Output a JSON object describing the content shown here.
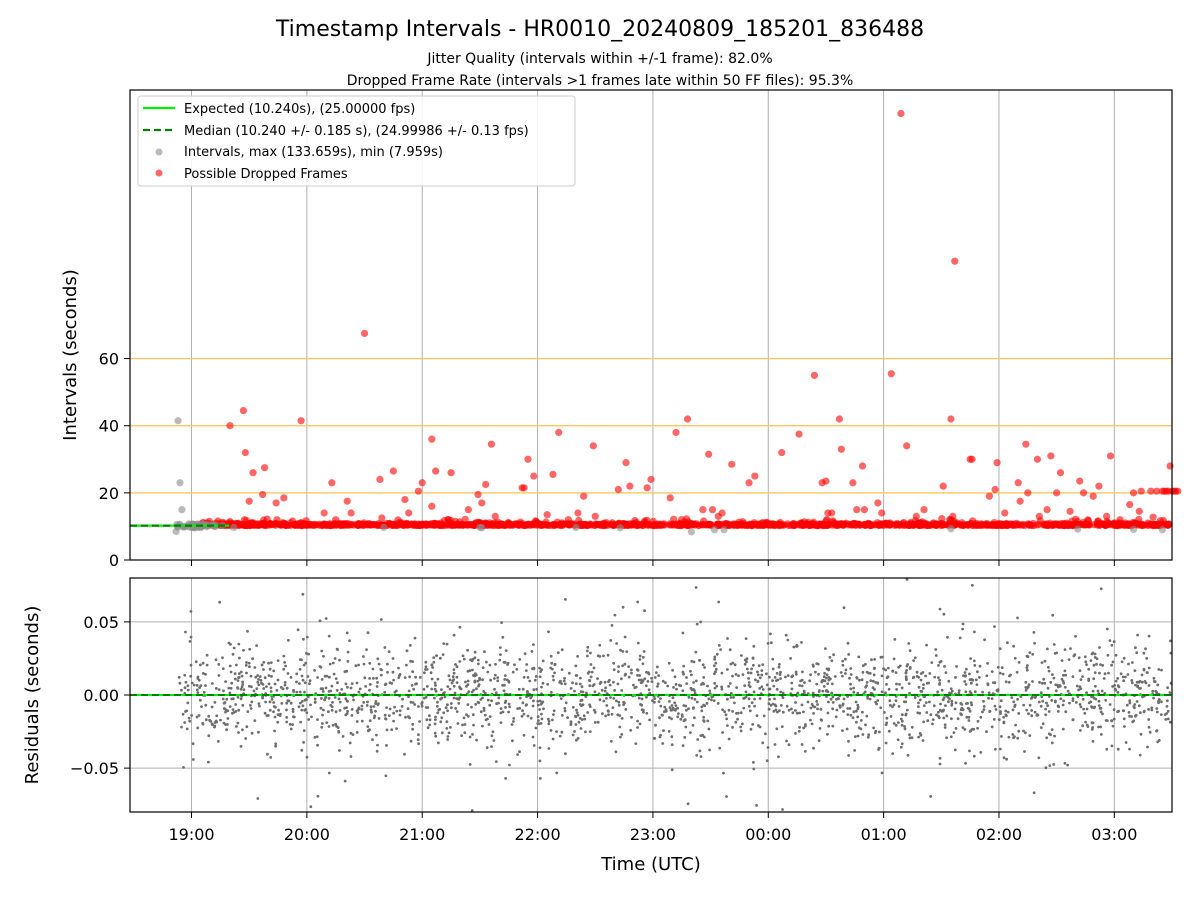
{
  "title": "Timestamp Intervals - HR0010_20240809_185201_836488",
  "subtitle_1": "Jitter Quality (intervals within +/-1 frame): 82.0%",
  "subtitle_2": "Dropped Frame Rate (intervals >1 frames late within 50 FF files): 95.3%",
  "colors": {
    "expected": "#00ee00",
    "median": "#008000",
    "intervals": "#8c8c8c",
    "dropped": "#ff0000",
    "threshold": "#ffc04c",
    "grid": "#b0b0b0",
    "residuals": "#6e6e6e"
  },
  "chart_data": [
    {
      "type": "scatter",
      "ylabel": "Intervals (seconds)",
      "xlim": [
        "18:28",
        "03:30"
      ],
      "ylim": [
        0,
        140
      ],
      "y_ticks": [
        "0",
        "20",
        "40",
        "60"
      ],
      "grid": "vertical",
      "horizontal_reference_lines": [
        20,
        40,
        60
      ],
      "legend_position": "top-left",
      "legend": [
        "Expected (10.240s), (25.00000 fps)",
        "Median (10.240 +/- 0.185 s), (24.99986 +/- 0.13 fps)",
        "Intervals, max (133.659s), min (7.959s)",
        "Possible Dropped Frames"
      ],
      "series": [
        {
          "name": "Expected (10.240s), (25.00000 fps)",
          "kind": "line",
          "y": 10.24
        },
        {
          "name": "Median (10.240 +/- 0.185 s), (24.99986 +/- 0.13 fps)",
          "kind": "dashed-line",
          "y": 10.24
        },
        {
          "name": "Intervals, max (133.659s), min (7.959s)",
          "kind": "scatter",
          "x": [
            "18:52",
            "18:53",
            "18:54",
            "18:55",
            "18:56",
            "18:59",
            "19:02",
            "19:08",
            "19:16",
            "19:22",
            "20:40",
            "21:30",
            "21:31",
            "22:20",
            "22:43",
            "23:20",
            "23:32",
            "23:37",
            "01:35",
            "02:41",
            "03:10",
            "03:25"
          ],
          "y": [
            8.5,
            41.5,
            23.0,
            15.0,
            10.0,
            9.8,
            9.6,
            9.9,
            10.3,
            9.7,
            9.7,
            9.7,
            9.6,
            9.7,
            9.6,
            8.4,
            9.0,
            9.0,
            9.3,
            9.2,
            9.1,
            9.0
          ]
        },
        {
          "name": "Possible Dropped Frames",
          "kind": "scatter",
          "baseline": "dense band of points at 10.24-11.0 s from 19:05 to 03:30",
          "x": [
            "19:20",
            "19:27",
            "19:28",
            "19:30",
            "19:32",
            "19:37",
            "19:38",
            "19:44",
            "19:48",
            "19:57",
            "20:09",
            "20:13",
            "20:15",
            "20:21",
            "20:23",
            "20:30",
            "20:38",
            "20:39",
            "20:45",
            "20:51",
            "20:53",
            "20:58",
            "21:00",
            "21:05",
            "21:05",
            "21:07",
            "21:15",
            "21:24",
            "21:29",
            "21:31",
            "21:33",
            "21:36",
            "21:38",
            "21:52",
            "21:53",
            "21:55",
            "21:58",
            "22:05",
            "22:08",
            "22:11",
            "22:16",
            "22:21",
            "22:24",
            "22:29",
            "22:30",
            "22:42",
            "22:46",
            "22:48",
            "22:57",
            "22:59",
            "23:09",
            "23:12",
            "23:18",
            "23:26",
            "23:29",
            "23:31",
            "23:34",
            "23:36",
            "23:41",
            "23:50",
            "23:53",
            "24:07",
            "24:16",
            "24:24",
            "24:28",
            "24:30",
            "24:31",
            "24:33",
            "24:37",
            "24:38",
            "24:44",
            "24:46",
            "24:49",
            "24:50",
            "24:57",
            "24:59",
            "25:04",
            "25:09",
            "25:12",
            "25:17",
            "25:21",
            "25:31",
            "25:35",
            "25:36",
            "25:37",
            "25:45",
            "25:46",
            "25:55",
            "25:58",
            "25:59",
            "26:03",
            "26:10",
            "26:11",
            "26:14",
            "26:15",
            "26:20",
            "26:21",
            "26:25",
            "26:27",
            "26:30",
            "26:32",
            "26:37",
            "26:42",
            "26:44",
            "26:49",
            "26:52",
            "26:56",
            "26:58",
            "27:03",
            "27:08",
            "27:10",
            "27:13",
            "27:14",
            "27:19",
            "27:22",
            "27:25",
            "27:26",
            "27:27",
            "27:28",
            "27:29",
            "27:30",
            "27:31",
            "27:32",
            "27:33"
          ],
          "y": [
            40.0,
            44.5,
            32.0,
            17.5,
            26.0,
            19.5,
            27.5,
            17.0,
            18.5,
            41.5,
            14.0,
            23.0,
            12.0,
            17.5,
            14.0,
            67.5,
            24.0,
            12.5,
            26.5,
            18.0,
            14.0,
            20.5,
            23.0,
            16.0,
            36.0,
            26.5,
            26.0,
            15.0,
            19.5,
            17.0,
            22.5,
            34.5,
            13.0,
            21.5,
            21.5,
            30.0,
            25.0,
            13.5,
            25.5,
            38.0,
            12.0,
            14.0,
            19.0,
            34.0,
            13.0,
            21.0,
            29.0,
            22.0,
            21.5,
            24.0,
            18.5,
            38.0,
            42.0,
            15.0,
            31.5,
            15.0,
            13.0,
            14.0,
            28.5,
            23.0,
            25.0,
            32.0,
            37.5,
            55.0,
            23.0,
            23.5,
            14.0,
            14.0,
            42.0,
            33.0,
            23.0,
            15.0,
            28.0,
            15.0,
            17.0,
            14.0,
            55.5,
            133.0,
            34.0,
            13.0,
            15.0,
            22.0,
            42.0,
            13.0,
            89.0,
            30.0,
            30.0,
            19.0,
            21.0,
            29.0,
            14.0,
            23.0,
            17.5,
            34.5,
            20.0,
            30.0,
            13.0,
            15.0,
            31.0,
            20.0,
            26.0,
            14.5,
            23.5,
            20.0,
            19.0,
            22.0,
            13.0,
            31.0,
            12.0,
            16.5,
            20.0,
            14.5,
            20.5,
            20.5,
            20.5,
            20.5,
            20.5,
            20.5,
            20.5,
            28.0,
            20.5,
            20.5,
            20.5,
            20.5
          ]
        }
      ]
    },
    {
      "type": "scatter",
      "xlabel": "Time (UTC)",
      "ylabel": "Residuals (seconds)",
      "x_ticks": [
        "19:00",
        "20:00",
        "21:00",
        "22:00",
        "23:00",
        "00:00",
        "01:00",
        "02:00",
        "03:00"
      ],
      "xlim": [
        "18:28",
        "03:30"
      ],
      "y_ticks": [
        "−0.05",
        "0.00",
        "0.05"
      ],
      "y_tick_values": [
        -0.05,
        0.0,
        0.05
      ],
      "ylim": [
        -0.08,
        0.08
      ],
      "grid": "both",
      "series": [
        {
          "name": "Expected",
          "kind": "line",
          "y": 0.0
        },
        {
          "name": "Median",
          "kind": "dashed-line",
          "y": 0.0
        },
        {
          "name": "Residuals",
          "kind": "scatter",
          "description": "about 2500 residual points spread roughly evenly from 18:53 to 03:30, mostly within +/-0.03 s, densest near 0, a few reaching +/-0.08 s"
        }
      ]
    }
  ]
}
